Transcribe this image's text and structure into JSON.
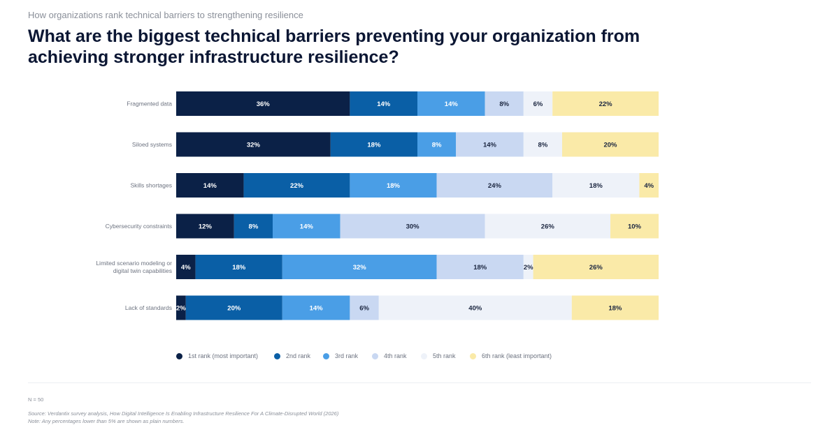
{
  "header": {
    "kicker": "How organizations rank technical barriers to strengthening resilience",
    "title": "What are the biggest technical barriers preventing your organization from achieving stronger infrastructure resilience?"
  },
  "chart_data": {
    "type": "bar",
    "orientation": "horizontal",
    "stacked": true,
    "unit": "%",
    "categories": [
      [
        "Fragmented data"
      ],
      [
        "Siloed systems"
      ],
      [
        "Skills shortages"
      ],
      [
        "Cybersecurity constraints"
      ],
      [
        "Limited scenario modeling or",
        "digital twin capabilities"
      ],
      [
        "Lack of standards"
      ]
    ],
    "series": [
      {
        "name": "1st rank (most important)",
        "color": "#0b2147",
        "values": [
          36,
          32,
          14,
          12,
          4,
          2
        ]
      },
      {
        "name": "2nd rank",
        "color": "#0a5fa6",
        "values": [
          14,
          18,
          22,
          8,
          18,
          20
        ]
      },
      {
        "name": "3rd rank",
        "color": "#4a9ee6",
        "values": [
          14,
          8,
          18,
          14,
          32,
          14
        ]
      },
      {
        "name": "4th rank",
        "color": "#c9d8f2",
        "values": [
          8,
          14,
          24,
          30,
          18,
          6
        ]
      },
      {
        "name": "5th rank",
        "color": "#eef2f9",
        "values": [
          6,
          8,
          18,
          26,
          2,
          40
        ]
      },
      {
        "name": "6th rank (least important)",
        "color": "#faeaa8",
        "values": [
          22,
          20,
          4,
          10,
          26,
          18
        ]
      }
    ],
    "xlim": [
      0,
      100
    ],
    "legend_position": "bottom"
  },
  "footer": {
    "n": "N = 50",
    "source": "Source: Verdantix survey analysis, How Digital Intelligence Is Enabling Infrastructure Resilience For A Climate-Disrupted World (2026)",
    "note": "Note: Any percentages lower than 5% are shown as plain numbers."
  }
}
